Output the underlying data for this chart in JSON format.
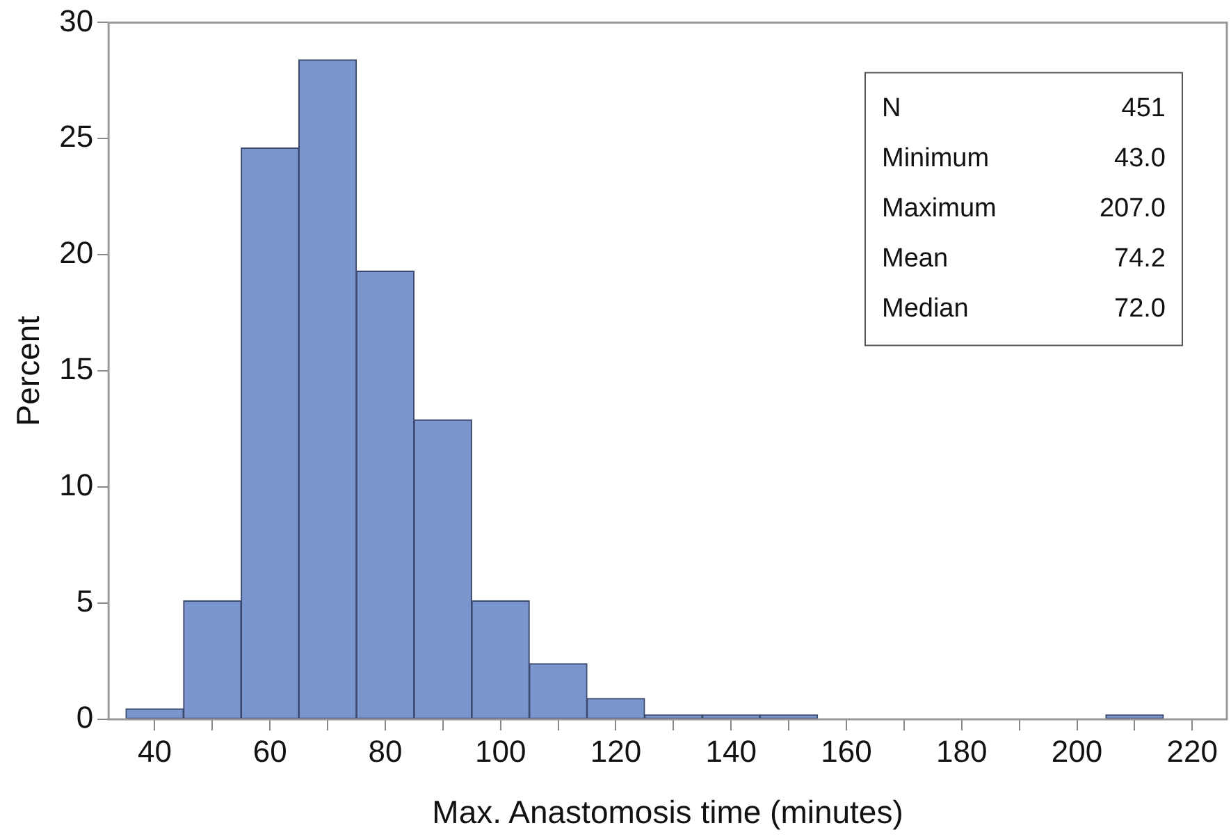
{
  "chart_data": {
    "type": "histogram",
    "xlabel": "Max. Anastomosis time (minutes)",
    "ylabel": "Percent",
    "bins": [
      35,
      45,
      55,
      65,
      75,
      85,
      95,
      105,
      115,
      125,
      135,
      145,
      155,
      165,
      175,
      185,
      195,
      205,
      215
    ],
    "values": [
      0.45,
      5.1,
      24.6,
      28.4,
      19.3,
      12.9,
      5.1,
      2.4,
      0.9,
      0.2,
      0.2,
      0.2,
      0,
      0,
      0,
      0,
      0,
      0.2
    ],
    "color": "#7b96cd",
    "xlim": [
      32,
      226
    ],
    "ylim": [
      0,
      30
    ],
    "xticks": [
      40,
      {
        "value": 50,
        "label": null
      },
      60,
      {
        "value": 70,
        "label": null
      },
      80,
      {
        "value": 90,
        "label": null
      },
      100,
      {
        "value": 110,
        "label": null
      },
      120,
      {
        "value": 130,
        "label": null
      },
      140,
      {
        "value": 150,
        "label": null
      },
      160,
      {
        "value": 170,
        "label": null
      },
      180,
      {
        "value": 190,
        "label": null
      },
      200,
      {
        "value": 210,
        "label": null
      },
      220
    ],
    "yticks": [
      0,
      5,
      10,
      15,
      20,
      25,
      30
    ],
    "annotations": [
      "N",
      "451",
      "Minimum",
      "43.0",
      "Maximum",
      "207.0",
      "Mean",
      "74.2",
      "Median",
      "72.0"
    ]
  }
}
